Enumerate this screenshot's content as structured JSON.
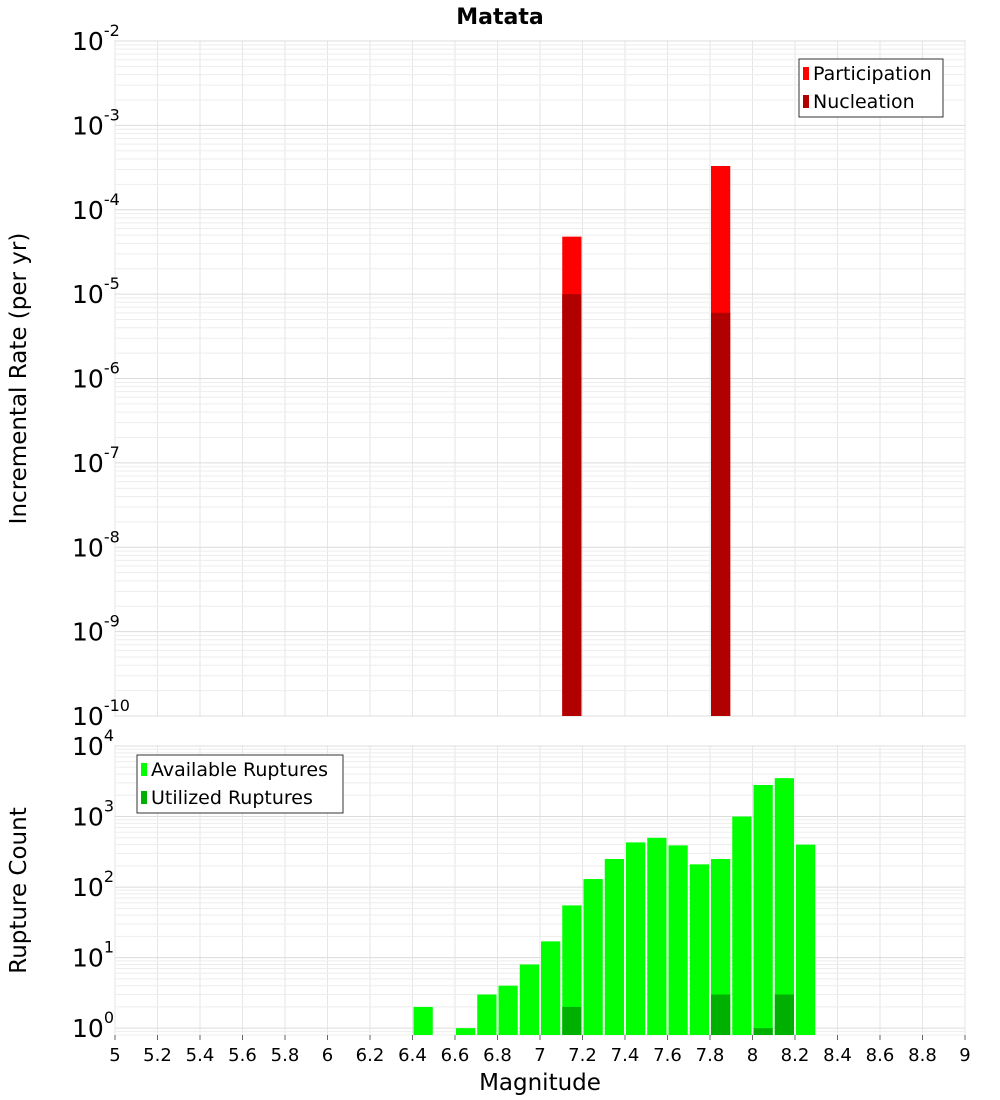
{
  "figure_title": "Matata",
  "x_axis_label": "Magnitude",
  "chart_data": [
    {
      "type": "bar",
      "title": "Matata",
      "xlabel": "",
      "ylabel": "Incremental Rate (per yr)",
      "yscale": "log",
      "ylim": [
        1e-10,
        0.01
      ],
      "xlim": [
        5,
        9
      ],
      "grid": true,
      "legend_position": "top-right",
      "bin_width": 0.1,
      "series": [
        {
          "name": "Participation",
          "color": "#ff0000",
          "x": [
            7.15,
            7.85
          ],
          "values": [
            4.8e-05,
            0.00033
          ]
        },
        {
          "name": "Nucleation",
          "color": "#b00000",
          "x": [
            7.15,
            7.85
          ],
          "values": [
            1e-05,
            6e-06
          ]
        }
      ],
      "y_ticks": [
        {
          "base": "10",
          "exp": "-10"
        },
        {
          "base": "10",
          "exp": "-9"
        },
        {
          "base": "10",
          "exp": "-8"
        },
        {
          "base": "10",
          "exp": "-7"
        },
        {
          "base": "10",
          "exp": "-6"
        },
        {
          "base": "10",
          "exp": "-5"
        },
        {
          "base": "10",
          "exp": "-4"
        },
        {
          "base": "10",
          "exp": "-3"
        },
        {
          "base": "10",
          "exp": "-2"
        }
      ]
    },
    {
      "type": "bar",
      "xlabel": "Magnitude",
      "ylabel": "Rupture Count",
      "yscale": "log",
      "ylim": [
        0.8,
        10000
      ],
      "xlim": [
        5,
        9
      ],
      "grid": true,
      "legend_position": "top-left",
      "bin_width": 0.1,
      "series": [
        {
          "name": "Available Ruptures",
          "color": "#00ff00",
          "x": [
            6.45,
            6.65,
            6.75,
            6.85,
            6.95,
            7.05,
            7.15,
            7.25,
            7.35,
            7.45,
            7.55,
            7.65,
            7.75,
            7.85,
            7.95,
            8.05,
            8.15,
            8.25
          ],
          "values": [
            2,
            1,
            3,
            4,
            8,
            17,
            55,
            130,
            250,
            430,
            500,
            390,
            210,
            250,
            1000,
            2800,
            3500,
            400
          ]
        },
        {
          "name": "Utilized Ruptures",
          "color": "#00b000",
          "x": [
            7.15,
            7.85,
            8.05,
            8.15
          ],
          "values": [
            2,
            3,
            1,
            3
          ]
        }
      ],
      "y_ticks": [
        {
          "base": "10",
          "exp": "0"
        },
        {
          "base": "10",
          "exp": "1"
        },
        {
          "base": "10",
          "exp": "2"
        },
        {
          "base": "10",
          "exp": "3"
        },
        {
          "base": "10",
          "exp": "4"
        }
      ],
      "x_ticks": [
        "5",
        "5.2",
        "5.4",
        "5.6",
        "5.8",
        "6",
        "6.2",
        "6.4",
        "6.6",
        "6.8",
        "7",
        "7.2",
        "7.4",
        "7.6",
        "7.8",
        "8",
        "8.2",
        "8.4",
        "8.6",
        "8.8",
        "9"
      ]
    }
  ]
}
